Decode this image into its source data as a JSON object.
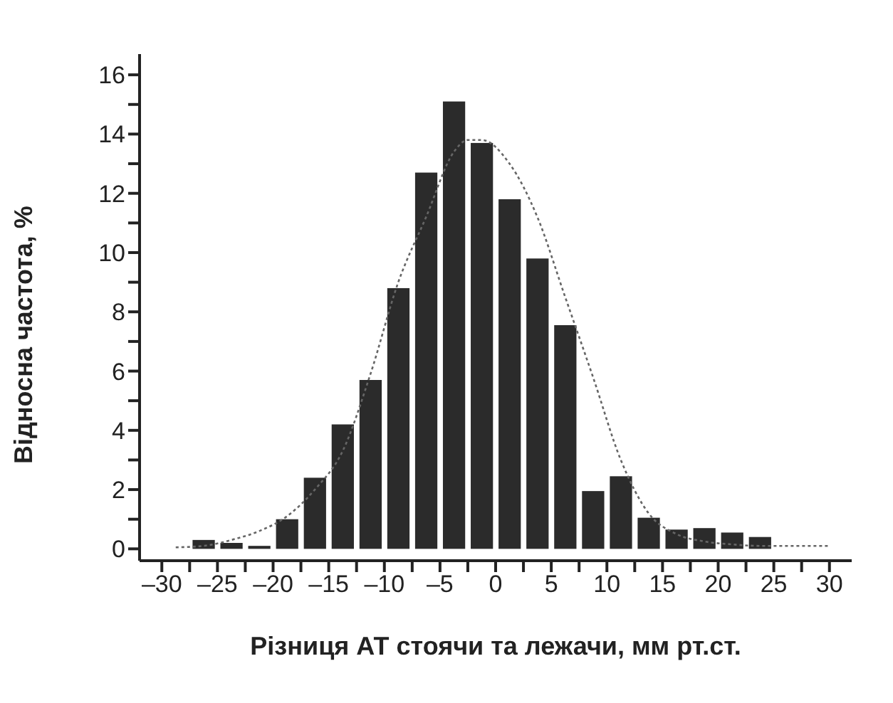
{
  "chart_data": {
    "type": "histogram",
    "xlabel": "Різниця АТ стоячи та лежачи, мм рт.ст.",
    "ylabel": "Відносна частота, %",
    "bins": [
      -27.5,
      -25,
      -22.5,
      -20,
      -17.5,
      -15,
      -12.5,
      -10,
      -7.5,
      -5,
      -2.5,
      0,
      2.5,
      5,
      7.5,
      10,
      12.5,
      15,
      17.5,
      20,
      22.5,
      25
    ],
    "values": [
      0.3,
      0.2,
      0.1,
      1.0,
      2.4,
      4.2,
      5.7,
      8.8,
      12.7,
      15.1,
      13.7,
      11.8,
      9.8,
      7.55,
      1.95,
      2.45,
      1.05,
      0.65,
      0.7,
      0.55,
      0.4
    ],
    "color": "#2b2b2b",
    "series": [
      {
        "type": "line",
        "color": "#666666",
        "line_style": "dotted",
        "marker": "none",
        "x": [
          -28.75,
          -26.25,
          -23.75,
          -21.25,
          -18.75,
          -16.25,
          -13.75,
          -11.25,
          -8.75,
          -6.25,
          -3.75,
          -2.5,
          -1.25,
          1.25,
          3.75,
          6.25,
          8.75,
          11.25,
          13.75,
          16.25,
          18.75,
          21.25,
          23.75,
          26.25,
          30
        ],
        "values": [
          0.05,
          0.1,
          0.3,
          0.6,
          1.1,
          2.0,
          3.3,
          5.9,
          9.0,
          11.2,
          13.4,
          13.8,
          13.8,
          13.0,
          11.2,
          8.5,
          5.8,
          3.0,
          1.2,
          0.5,
          0.25,
          0.15,
          0.1,
          0.1,
          0.1
        ]
      }
    ],
    "xlim": [
      -32,
      32
    ],
    "xticks": [
      {
        "value": -30,
        "label": "–30"
      },
      {
        "value": -27.5,
        "label": null
      },
      {
        "value": -25,
        "label": "–25"
      },
      {
        "value": -22.5,
        "label": null
      },
      {
        "value": -20,
        "label": "–20"
      },
      {
        "value": -17.5,
        "label": null
      },
      {
        "value": -15,
        "label": "–15"
      },
      {
        "value": -12.5,
        "label": null
      },
      {
        "value": -10,
        "label": "–10"
      },
      {
        "value": -7.5,
        "label": null
      },
      {
        "value": -5,
        "label": "–5"
      },
      {
        "value": -2.5,
        "label": null
      },
      0,
      {
        "value": 2.5,
        "label": null
      },
      5,
      {
        "value": 7.5,
        "label": null
      },
      10,
      {
        "value": 12.5,
        "label": null
      },
      15,
      {
        "value": 17.5,
        "label": null
      },
      20,
      {
        "value": 22.5,
        "label": null
      },
      25,
      {
        "value": 27.5,
        "label": null
      },
      30
    ],
    "ylim": [
      -0.4,
      16.7
    ],
    "yticks": [
      0,
      {
        "value": 1,
        "label": null
      },
      2,
      {
        "value": 3,
        "label": null
      },
      4,
      {
        "value": 5,
        "label": null
      },
      6,
      {
        "value": 7,
        "label": null
      },
      8,
      {
        "value": 9,
        "label": null
      },
      10,
      {
        "value": 11,
        "label": null
      },
      12,
      {
        "value": 13,
        "label": null
      },
      14,
      {
        "value": 15,
        "label": null
      },
      16
    ],
    "grid": false,
    "legend": false
  }
}
